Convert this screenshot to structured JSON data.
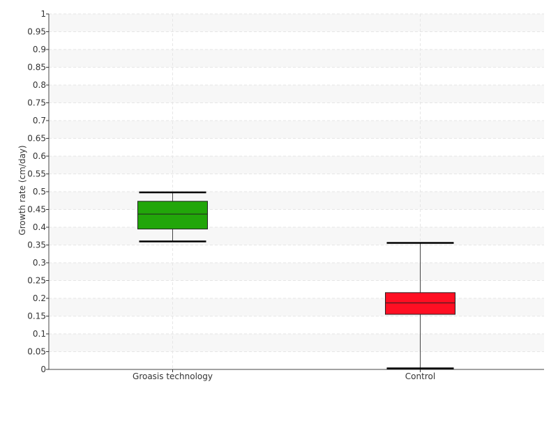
{
  "chart_data": {
    "type": "boxplot",
    "title": "",
    "xlabel": "",
    "ylabel": "Growth rate (cm/day)",
    "ylim": [
      0,
      1
    ],
    "y_tick_step": 0.05,
    "y_ticks": [
      "0",
      "0.05",
      "0.1",
      "0.15",
      "0.2",
      "0.25",
      "0.3",
      "0.35",
      "0.4",
      "0.45",
      "0.5",
      "0.55",
      "0.6",
      "0.65",
      "0.7",
      "0.75",
      "0.8",
      "0.85",
      "0.9",
      "0.95",
      "1"
    ],
    "grid": true,
    "legend": "none",
    "categories": [
      "Groasis technology",
      "Control"
    ],
    "boxes": [
      {
        "category": "Groasis technology",
        "min": 0.36,
        "q1": 0.395,
        "median": 0.437,
        "q3": 0.473,
        "max": 0.498,
        "color": "#22a60a"
      },
      {
        "category": "Control",
        "min": 0.003,
        "q1": 0.155,
        "median": 0.187,
        "q3": 0.216,
        "max": 0.356,
        "color": "#ff0f23"
      }
    ]
  }
}
